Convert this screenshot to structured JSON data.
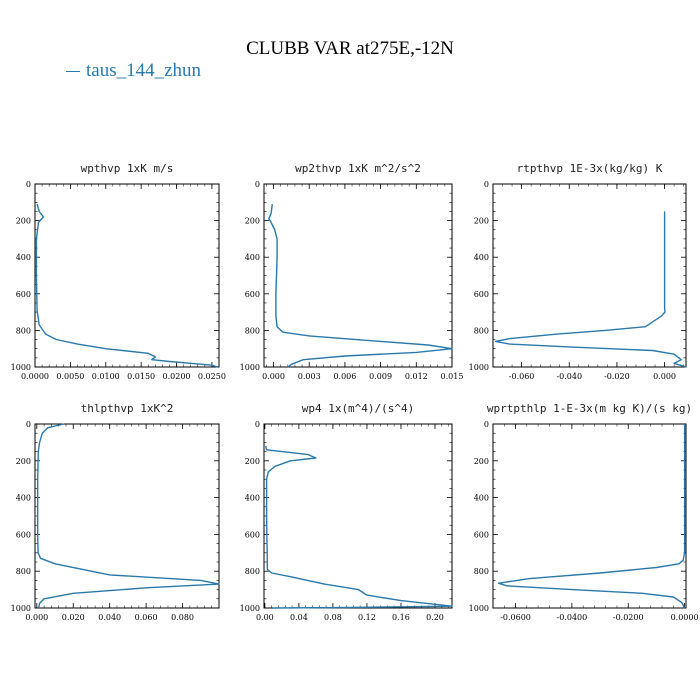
{
  "figure": {
    "title": "CLUBB VAR at275E,-12N",
    "legend_label": "taus_144_zhun",
    "line_color": "#2a79ad"
  },
  "chart_data": [
    {
      "type": "line",
      "title": "wpthvp   1xK m/s",
      "xlim": [
        0,
        0.026
      ],
      "ylim": [
        1000,
        0
      ],
      "xticks": [
        0,
        0.005,
        0.01,
        0.015,
        0.02,
        0.025
      ],
      "xtick_labels": [
        "0.0000",
        "0.0050",
        "0.0100",
        "0.0150",
        "0.0200",
        "0.0250"
      ],
      "yticks": [
        0,
        200,
        400,
        600,
        800,
        1000
      ],
      "series": [
        {
          "x": [
            0.0003,
            0.0006,
            0.0012,
            0.0005,
            0.0002,
            0.0002,
            0.0003,
            0.0006,
            0.0015,
            0.003,
            0.006,
            0.01,
            0.016,
            0.017,
            0.0165,
            0.019,
            0.022,
            0.025,
            0.0258
          ],
          "y": [
            110,
            150,
            180,
            210,
            300,
            500,
            690,
            770,
            820,
            850,
            875,
            900,
            925,
            945,
            960,
            970,
            980,
            990,
            1000
          ]
        }
      ]
    },
    {
      "type": "line",
      "title": "wp2thvp   1xK m^2/s^2",
      "xlim": [
        -0.0008,
        0.015
      ],
      "ylim": [
        1000,
        0
      ],
      "xticks": [
        0,
        0.003,
        0.006,
        0.009,
        0.012,
        0.015
      ],
      "xtick_labels": [
        "0.000",
        "0.003",
        "0.006",
        "0.009",
        "0.012",
        "0.015"
      ],
      "yticks": [
        0,
        200,
        400,
        600,
        800,
        1000
      ],
      "series": [
        {
          "x": [
            -0.0001,
            -0.0002,
            -0.0004,
            -0.0002,
            0.0001,
            0.0003,
            0.0003,
            0.0002,
            0.0002,
            0.0003,
            0.0008,
            0.003,
            0.009,
            0.013,
            0.015,
            0.012,
            0.006,
            0.0025,
            0.0015,
            0.0012
          ],
          "y": [
            110,
            160,
            190,
            210,
            250,
            300,
            400,
            600,
            720,
            780,
            810,
            830,
            860,
            880,
            900,
            920,
            940,
            960,
            985,
            1000
          ]
        }
      ]
    },
    {
      "type": "line",
      "title": "rtpthvp   1E-3x(kg/kg) K",
      "xlim": [
        -0.072,
        0.009
      ],
      "ylim": [
        1000,
        0
      ],
      "xticks": [
        -0.06,
        -0.04,
        -0.02,
        0
      ],
      "xtick_labels": [
        "-0.060",
        "-0.040",
        "-0.020",
        "0.000"
      ],
      "yticks": [
        0,
        200,
        400,
        600,
        800,
        1000
      ],
      "series": [
        {
          "x": [
            0,
            0,
            0,
            0,
            0,
            0.0002,
            -0.0012,
            -0.008,
            -0.025,
            -0.045,
            -0.065,
            -0.071,
            -0.065,
            -0.04,
            -0.005,
            0.004,
            0.007,
            0.004,
            0.009
          ],
          "y": [
            150,
            300,
            500,
            600,
            680,
            700,
            720,
            780,
            800,
            820,
            845,
            860,
            875,
            890,
            910,
            930,
            960,
            980,
            1000
          ]
        }
      ]
    },
    {
      "type": "line",
      "title": "thlpthvp   1xK^2",
      "xlim": [
        -0.001,
        0.1
      ],
      "ylim": [
        1000,
        0
      ],
      "xticks": [
        0,
        0.02,
        0.04,
        0.06,
        0.08
      ],
      "xtick_labels": [
        "0.000",
        "0.020",
        "0.040",
        "0.060",
        "0.080"
      ],
      "yticks": [
        0,
        200,
        400,
        600,
        800,
        1000
      ],
      "series": [
        {
          "x": [
            0.015,
            0.006,
            0.003,
            0.0015,
            0.0008,
            0.0005,
            0.0005,
            0.0007,
            0.002,
            0.01,
            0.04,
            0.09,
            0.1,
            0.06,
            0.02,
            0.004,
            0.0015,
            0.001
          ],
          "y": [
            0,
            20,
            50,
            100,
            150,
            300,
            600,
            700,
            730,
            760,
            820,
            850,
            870,
            890,
            920,
            950,
            975,
            1000
          ]
        }
      ]
    },
    {
      "type": "line",
      "title": "wp4   1x(m^4)/(s^4)",
      "xlim": [
        -0.001,
        0.22
      ],
      "ylim": [
        1000,
        0
      ],
      "xticks": [
        0,
        0.04,
        0.08,
        0.12,
        0.16,
        0.2
      ],
      "xtick_labels": [
        "0.00",
        "0.04",
        "0.08",
        "0.12",
        "0.16",
        "0.20"
      ],
      "yticks": [
        0,
        200,
        400,
        600,
        800,
        1000
      ],
      "series": [
        {
          "x": [
            0.001,
            0.002,
            0.02,
            0.05,
            0.06,
            0.03,
            0.012,
            0.004,
            0.002,
            0.002,
            0.003,
            0.008,
            0.03,
            0.07,
            0.11,
            0.12,
            0.16,
            0.2,
            0.22,
            0.1,
            0.01
          ],
          "y": [
            120,
            140,
            150,
            165,
            185,
            200,
            230,
            260,
            300,
            500,
            790,
            810,
            830,
            870,
            900,
            930,
            960,
            980,
            990,
            997,
            1000
          ]
        }
      ]
    },
    {
      "type": "line",
      "title": "wprtpthlp   1-E-3x(m kg K)/(s kg)",
      "xlim": [
        -0.068,
        0.0005
      ],
      "ylim": [
        1000,
        0
      ],
      "xticks": [
        -0.06,
        -0.04,
        -0.02,
        0
      ],
      "xtick_labels": [
        "-0.0600",
        "-0.0400",
        "-0.0200",
        "0.0000"
      ],
      "yticks": [
        0,
        200,
        400,
        600,
        800,
        1000
      ],
      "series": [
        {
          "x": [
            0,
            0,
            0,
            0,
            -0.0005,
            -0.002,
            -0.01,
            -0.03,
            -0.055,
            -0.066,
            -0.063,
            -0.04,
            -0.015,
            -0.004,
            -0.001,
            0
          ],
          "y": [
            0,
            200,
            500,
            700,
            740,
            760,
            780,
            810,
            840,
            865,
            880,
            900,
            920,
            940,
            970,
            1000
          ]
        }
      ]
    }
  ]
}
